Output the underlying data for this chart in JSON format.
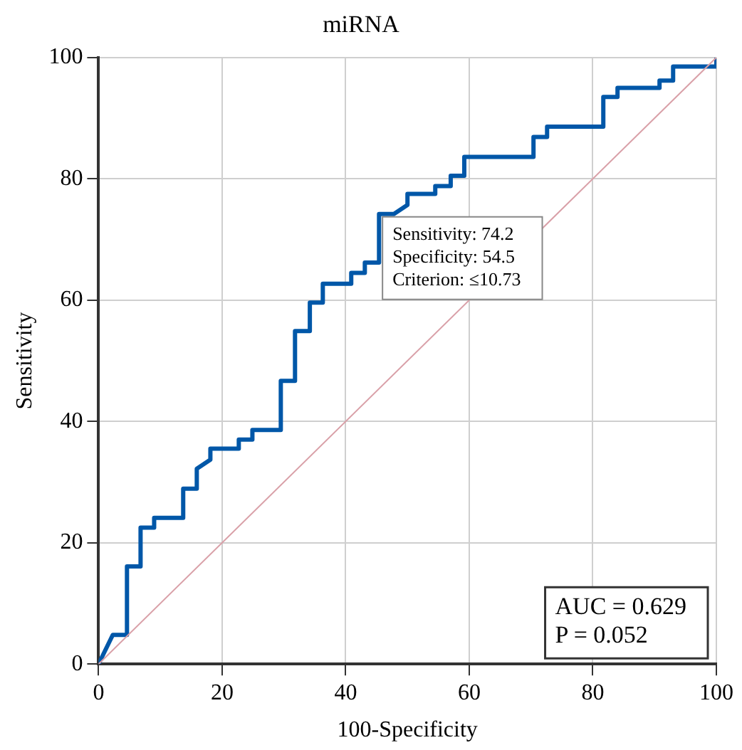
{
  "chart_data": {
    "type": "line",
    "title": "miRNA",
    "xlabel": "100-Specificity",
    "ylabel": "Sensitivity",
    "xlim": [
      0,
      100
    ],
    "ylim": [
      0,
      100
    ],
    "xticks": [
      0,
      20,
      40,
      60,
      80,
      100
    ],
    "yticks": [
      0,
      20,
      40,
      60,
      80,
      100
    ],
    "grid": true,
    "legend": false,
    "marker": "none",
    "line_style": "solid",
    "series": [
      {
        "color": "#d9a0a8",
        "x": [
          0,
          100
        ],
        "values": [
          0,
          100
        ]
      },
      {
        "color": "#0057a8",
        "x": [
          0,
          2.3,
          4.6,
          4.6,
          6.8,
          6.8,
          9.0,
          9.0,
          13.7,
          13.7,
          15.9,
          15.9,
          18.1,
          18.1,
          22.7,
          22.7,
          24.9,
          24.9,
          29.5,
          29.5,
          31.8,
          31.8,
          34.2,
          34.2,
          36.3,
          36.3,
          40.9,
          40.9,
          43.1,
          43.1,
          45.4,
          45.4,
          47.8,
          50.0,
          50.0,
          54.5,
          54.5,
          57.0,
          57.0,
          59.2,
          59.2,
          70.4,
          70.4,
          72.6,
          72.6,
          81.7,
          81.7,
          84.0,
          84.0,
          90.8,
          90.8,
          93.0,
          93.0,
          100,
          100
        ],
        "values": [
          0,
          4.8,
          4.8,
          16.1,
          16.1,
          22.5,
          22.5,
          24.1,
          24.1,
          28.9,
          28.9,
          32.2,
          33.7,
          35.5,
          35.5,
          37.0,
          37.0,
          38.6,
          38.6,
          46.7,
          46.7,
          54.9,
          54.9,
          59.6,
          59.6,
          62.7,
          62.7,
          64.5,
          64.5,
          66.2,
          66.2,
          74.2,
          74.2,
          75.7,
          77.5,
          77.5,
          78.8,
          78.8,
          80.5,
          80.5,
          83.6,
          83.6,
          86.9,
          86.9,
          88.6,
          88.6,
          93.5,
          93.5,
          95.0,
          95.0,
          96.2,
          96.2,
          98.5,
          98.5,
          100
        ]
      }
    ],
    "annotations": [
      {
        "text": "Sensitivity: 74.2\nSpecificity: 54.5\nCriterion: ≤10.73",
        "x": 45.5,
        "y": 74.2
      },
      "AUC = 0.629\nP = 0.052"
    ]
  }
}
